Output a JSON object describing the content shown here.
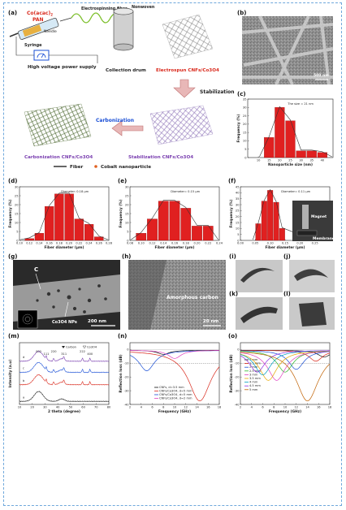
{
  "labels": {
    "a": "(a)",
    "b": "(b)",
    "c": "(c)",
    "d": "(d)",
    "e": "(e)",
    "f": "(f)",
    "g": "(g)",
    "h": "(h)",
    "i": "(i)",
    "j": "(j)",
    "k": "(k)",
    "l": "(l)",
    "m": "(m)",
    "n": "(n)",
    "o": "(o)"
  },
  "panel_a": {
    "precursor": "Co(acac)",
    "precursor_sub": "2",
    "precursor2": "PAN",
    "needle": "Needle",
    "syringe": "Syringe",
    "fiber": "Electrospinning fiber",
    "nonwoven": "Nonwoven",
    "power": "High voltage power supply",
    "drum": "Collection drum",
    "product": "Electrospun CNFs/Co3O4",
    "stabilization": "Stabilization",
    "carbonization": "Carbonization",
    "carb_product": "Carbonization CNFs/Co3O4",
    "stab_product": "Stabilization CNFs/Co3O4",
    "legend_fiber": "Fiber",
    "legend_cobalt": "Cobalt nanoparticle"
  },
  "panel_b": {
    "scale": "500 nm"
  },
  "panel_g": {
    "c_label": "C",
    "np_label": "Co3O4 NPs",
    "scale": "200 nm"
  },
  "panel_h": {
    "label": "Amorphous carbon",
    "scale": "20 nm"
  },
  "panel_f_inset": {
    "magnet": "Magnet",
    "membrane": "Membrane"
  },
  "chart_data": [
    {
      "id": "c",
      "type": "bar",
      "title": "The size = 21 nm",
      "xlabel": "Nanoparticle size (nm)",
      "ylabel": "Frequency (%)",
      "xlim": [
        5,
        45
      ],
      "ylim": [
        0,
        35
      ],
      "xticks": [
        "10",
        "15",
        "20",
        "25",
        "30",
        "35",
        "40"
      ],
      "yticks": [
        "0",
        "5",
        "10",
        "15",
        "20",
        "25",
        "30",
        "35"
      ],
      "x": [
        15,
        20,
        25,
        30,
        35,
        40
      ],
      "values": [
        12,
        30,
        22,
        4,
        4,
        3
      ]
    },
    {
      "id": "d",
      "type": "bar",
      "title": "Diameter: 0.18 μm",
      "xlabel": "Fiber diameter (μm)",
      "ylabel": "Frequency (%)",
      "xlim": [
        0.1,
        0.28
      ],
      "ylim": [
        0,
        30
      ],
      "xticks": [
        "0.10",
        "0.12",
        "0.14",
        "0.16",
        "0.18",
        "0.20",
        "0.22",
        "0.24",
        "0.26",
        "0.28"
      ],
      "yticks": [
        "0",
        "5",
        "10",
        "15",
        "20",
        "25",
        "30"
      ],
      "x": [
        0.12,
        0.14,
        0.16,
        0.18,
        0.2,
        0.22,
        0.24,
        0.26
      ],
      "values": [
        1,
        4,
        19,
        26,
        26,
        12,
        9,
        2
      ]
    },
    {
      "id": "e",
      "type": "bar",
      "title": "Diameter= 0.15 μm",
      "xlabel": "Fiber diameter (μm)",
      "ylabel": "Frequency (%)",
      "xlim": [
        0.08,
        0.24
      ],
      "ylim": [
        0,
        30
      ],
      "xticks": [
        "0.08",
        "0.10",
        "0.12",
        "0.14",
        "0.16",
        "0.18",
        "0.20",
        "0.22",
        "0.24"
      ],
      "yticks": [
        "0",
        "5",
        "10",
        "15",
        "20",
        "25",
        "30"
      ],
      "x": [
        0.1,
        0.12,
        0.14,
        0.16,
        0.18,
        0.2,
        0.22
      ],
      "values": [
        4,
        12,
        22,
        22,
        18,
        8,
        8
      ]
    },
    {
      "id": "f",
      "type": "bar",
      "title": "Diameter= 0.11 μm",
      "xlabel": "Fiber diameter (μm)",
      "ylabel": "Frequency (%)",
      "xlim": [
        0.0,
        0.3
      ],
      "ylim": [
        0,
        45
      ],
      "xticks": [
        "0.00",
        "0.05",
        "0.10",
        "0.15",
        "0.20",
        "0.25"
      ],
      "yticks": [
        "0",
        "5",
        "10",
        "15",
        "20",
        "25",
        "30",
        "35",
        "40",
        "45"
      ],
      "x": [
        0.06,
        0.08,
        0.1,
        0.12,
        0.14,
        0.22
      ],
      "values": [
        14,
        33,
        42,
        32,
        10,
        2
      ]
    },
    {
      "id": "m",
      "type": "line",
      "title": "",
      "xlabel": "2 theta (degree)",
      "ylabel": "Intensity (a.u)",
      "xlim": [
        10,
        80
      ],
      "ylim": [
        0,
        1
      ],
      "xticks": [
        "10",
        "20",
        "30",
        "40",
        "50",
        "60",
        "70",
        "80"
      ],
      "legend": [
        "Carbon",
        "Co3O4"
      ],
      "peak_labels": [
        "002",
        "111",
        "220",
        "311",
        "222",
        "400",
        "511",
        "440"
      ],
      "series": [
        {
          "name": "a",
          "color": "#222222"
        },
        {
          "name": "b",
          "color": "#d9291c"
        },
        {
          "name": "c",
          "color": "#1a4fd6"
        },
        {
          "name": "d",
          "color": "#7a3fb0"
        }
      ]
    },
    {
      "id": "n",
      "type": "line",
      "title": "",
      "xlabel": "Frequency (GHz)",
      "ylabel": "Reflection loss (dB)",
      "xlim": [
        2,
        18
      ],
      "ylim": [
        -40,
        5
      ],
      "xticks": [
        "2",
        "4",
        "6",
        "8",
        "10",
        "12",
        "14",
        "16",
        "18"
      ],
      "yticks": [
        "0",
        "-10",
        "-20",
        "-30",
        "-40"
      ],
      "series": [
        {
          "name": "CNFs, d=3.5 mm",
          "color": "#111111",
          "min_x": 8,
          "min_y": -3
        },
        {
          "name": "CNFs/Co3O4, d=5 mm",
          "color": "#d9291c",
          "min_x": 14.5,
          "min_y": -37
        },
        {
          "name": "CNFs/Co3O4, d=5 mm",
          "color": "#1a4fd6",
          "min_x": 5,
          "min_y": -15
        },
        {
          "name": "CNFs/Co3O4, d=2 mm",
          "color": "#e040c0",
          "min_x": 10,
          "min_y": -6
        }
      ]
    },
    {
      "id": "o",
      "type": "line",
      "title": "",
      "xlabel": "Frequency (GHz)",
      "ylabel": "Reflection loss (dB)",
      "xlim": [
        2,
        18
      ],
      "ylim": [
        -40,
        5
      ],
      "xticks": [
        "2",
        "4",
        "6",
        "8",
        "10",
        "12",
        "14",
        "16",
        "18"
      ],
      "yticks": [
        "0",
        "-10",
        "-20",
        "-30",
        "-40"
      ],
      "series": [
        {
          "name": "1 mm",
          "color": "#111111",
          "min_x": 17,
          "min_y": -5
        },
        {
          "name": "1.5 mm",
          "color": "#d9291c",
          "min_x": 15.5,
          "min_y": -8
        },
        {
          "name": "2 mm",
          "color": "#1a4fd6",
          "min_x": 12,
          "min_y": -14
        },
        {
          "name": "2.5 mm",
          "color": "#2eb82e",
          "min_x": 10,
          "min_y": -16
        },
        {
          "name": "3 mm",
          "color": "#e040c0",
          "min_x": 8.5,
          "min_y": -22
        },
        {
          "name": "3.5 mm",
          "color": "#e6a800",
          "min_x": 7,
          "min_y": -22
        },
        {
          "name": "4 mm",
          "color": "#00a0c0",
          "min_x": 6,
          "min_y": -18
        },
        {
          "name": "4.5 mm",
          "color": "#8a2be2",
          "min_x": 5,
          "min_y": -16
        },
        {
          "name": "5 mm",
          "color": "#c06000",
          "min_x": 14,
          "min_y": -37
        }
      ]
    }
  ]
}
